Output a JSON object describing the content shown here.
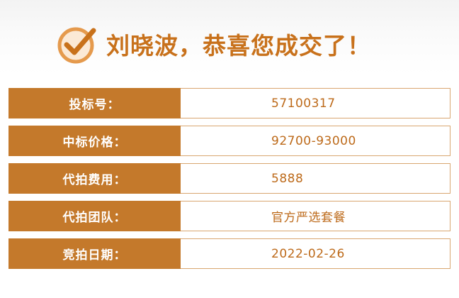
{
  "headline": {
    "icon": "check-circle-icon",
    "text": "刘晓波，恭喜您成交了！"
  },
  "colors": {
    "accent": "#c8711b",
    "label_bg": "#c4792b",
    "value_text": "#bd6a1a",
    "value_border": "#d9a670"
  },
  "rows": [
    {
      "label": "投标号：",
      "value": "57100317"
    },
    {
      "label": "中标价格：",
      "value": "92700-93000"
    },
    {
      "label": "代拍费用：",
      "value": "5888"
    },
    {
      "label": "代拍团队：",
      "value": "官方严选套餐"
    },
    {
      "label": "竞拍日期：",
      "value": "2022-02-26"
    }
  ]
}
